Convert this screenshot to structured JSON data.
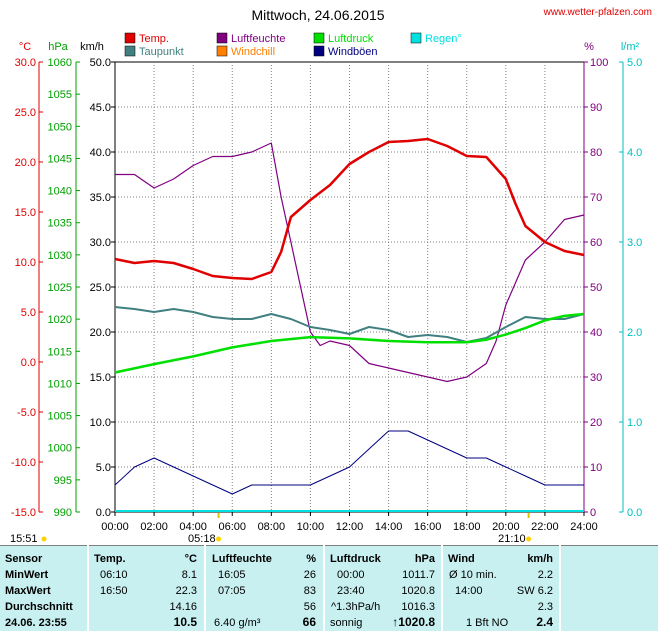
{
  "header": {
    "title": "Mittwoch, 24.06.2015",
    "site": "www.wetter-pfalzen.com"
  },
  "colors": {
    "temp": "#e00000",
    "taupunkt": "#408080",
    "luftfeuchte": "#800080",
    "windchill": "#ff8000",
    "luftdruck": "#00e000",
    "windboen": "#000080",
    "regen": "#00e0e0",
    "table_bg": "#c8f0f0"
  },
  "chart_data": {
    "type": "line",
    "x_label_ticks": [
      "00:00",
      "02:00",
      "04:00",
      "06:00",
      "08:00",
      "10:00",
      "12:00",
      "14:00",
      "16:00",
      "18:00",
      "20:00",
      "22:00",
      "24:00"
    ],
    "axes": {
      "temp_c": {
        "unit": "°C",
        "ticks": [
          "30.0",
          "25.0",
          "20.0",
          "15.0",
          "10.0",
          "5.0",
          "0.0",
          "-5.0",
          "-10.0",
          "-15.0"
        ],
        "ylim": [
          -15,
          30
        ]
      },
      "pressure": {
        "unit": "hPa",
        "ticks": [
          "1060",
          "1055",
          "1050",
          "1045",
          "1040",
          "1035",
          "1030",
          "1025",
          "1020",
          "1015",
          "1010",
          "1005",
          "1000",
          "995",
          "990"
        ],
        "ylim": [
          990,
          1060
        ]
      },
      "wind": {
        "unit": "km/h",
        "ticks": [
          "50.0",
          "45.0",
          "40.0",
          "35.0",
          "30.0",
          "25.0",
          "20.0",
          "15.0",
          "10.0",
          "5.0",
          "0.0"
        ],
        "ylim": [
          0,
          50
        ]
      },
      "humidity": {
        "unit": "%",
        "ticks": [
          "100",
          "90",
          "80",
          "70",
          "60",
          "50",
          "40",
          "30",
          "20",
          "10",
          "0"
        ],
        "ylim": [
          0,
          100
        ]
      },
      "rain": {
        "unit": "l/m²",
        "ticks": [
          "5.0",
          "4.0",
          "3.0",
          "2.0",
          "1.0",
          "0.0"
        ],
        "ylim": [
          0,
          5
        ]
      }
    },
    "legend": [
      "Temp.",
      "Luftfeuchte",
      "Luftdruck",
      "Regen°",
      "Taupunkt",
      "Windchill",
      "Windböen"
    ],
    "sun": {
      "sunrise_marker": "05:18",
      "sunset_marker": "21:10",
      "left_time": "15:51"
    },
    "series": [
      {
        "name": "Temp.",
        "axis": "temp_c",
        "x": [
          0,
          1,
          2,
          3,
          4,
          5,
          6,
          7,
          8,
          8.5,
          9,
          10,
          11,
          12,
          13,
          14,
          15,
          16,
          17,
          18,
          19,
          20,
          20.5,
          21,
          22,
          23,
          24
        ],
        "values": [
          10.3,
          9.9,
          10.1,
          9.9,
          9.3,
          8.6,
          8.4,
          8.3,
          9.0,
          11.0,
          14.5,
          16.2,
          17.7,
          19.8,
          21.0,
          22.0,
          22.1,
          22.3,
          21.6,
          20.6,
          20.5,
          18.3,
          15.8,
          13.6,
          12.0,
          11.1,
          10.7
        ]
      },
      {
        "name": "Taupunkt",
        "axis": "temp_c",
        "x": [
          0,
          1,
          2,
          3,
          4,
          5,
          6,
          7,
          8,
          9,
          10,
          11,
          12,
          13,
          14,
          15,
          16,
          17,
          18,
          19,
          20,
          21,
          22,
          23,
          24
        ],
        "values": [
          5.5,
          5.3,
          5.0,
          5.3,
          5.0,
          4.5,
          4.3,
          4.3,
          4.8,
          4.3,
          3.5,
          3.2,
          2.8,
          3.5,
          3.2,
          2.5,
          2.7,
          2.5,
          2.0,
          2.4,
          3.5,
          4.5,
          4.3,
          4.3,
          4.8
        ]
      },
      {
        "name": "Luftfeuchte",
        "axis": "humidity",
        "x": [
          0,
          1,
          2,
          3,
          4,
          5,
          6,
          7,
          8,
          8.5,
          9,
          9.5,
          10,
          10.5,
          11,
          12,
          13,
          14,
          15,
          16,
          17,
          18,
          19,
          19.5,
          20,
          21,
          22,
          23,
          24
        ],
        "values": [
          75,
          75,
          72,
          74,
          77,
          79,
          79,
          80,
          82,
          70,
          60,
          50,
          40,
          37,
          38,
          37,
          33,
          32,
          31,
          30,
          29,
          30,
          33,
          38,
          46,
          56,
          60,
          65,
          66
        ]
      },
      {
        "name": "Luftdruck",
        "axis": "pressure",
        "x": [
          0,
          2,
          4,
          6,
          8,
          10,
          12,
          14,
          16,
          18,
          19,
          20,
          21,
          22,
          23,
          24
        ],
        "values": [
          1011.7,
          1013.0,
          1014.2,
          1015.6,
          1016.6,
          1017.2,
          1017.0,
          1016.6,
          1016.4,
          1016.4,
          1016.8,
          1017.6,
          1018.6,
          1019.8,
          1020.5,
          1020.8
        ]
      },
      {
        "name": "Windböen",
        "axis": "wind",
        "x": [
          0,
          1,
          2,
          3,
          4,
          5,
          6,
          7,
          8,
          9,
          10,
          11,
          12,
          13,
          14,
          15,
          16,
          17,
          18,
          19,
          20,
          21,
          22,
          23,
          24
        ],
        "values": [
          3,
          5,
          6,
          5,
          4,
          3,
          2,
          3,
          3,
          3,
          3,
          4,
          5,
          7,
          9,
          9,
          8,
          7,
          6,
          6,
          5,
          4,
          3,
          3,
          3
        ]
      }
    ]
  },
  "table": {
    "headers": {
      "sensor": "Sensor",
      "temp": "Temp.",
      "temp_unit": "°C",
      "hum": "Luftfeuchte",
      "hum_unit": "%",
      "press": "Luftdruck",
      "press_unit": "hPa",
      "wind": "Wind",
      "wind_unit": "km/h"
    },
    "rows": [
      {
        "label": "MinWert",
        "t_time": "06:10",
        "t_val": "8.1",
        "h_time": "16:05",
        "h_val": "26",
        "p_time": "00:00",
        "p_val": "1011.7",
        "w_time": "Ø 10 min.",
        "w_val": "2.2"
      },
      {
        "label": "MaxWert",
        "t_time": "16:50",
        "t_val": "22.3",
        "h_time": "07:05",
        "h_val": "83",
        "p_time": "23:40",
        "p_val": "1020.8",
        "w_time": "14:00",
        "w_val": "SW 6.2"
      },
      {
        "label": "Durchschnitt",
        "t_time": "",
        "t_val": "14.16",
        "h_time": "",
        "h_val": "56",
        "p_time": "^1.3hPa/h",
        "p_val": "1016.3",
        "w_time": "",
        "w_val": "2.3"
      },
      {
        "label": "24.06. 23:55",
        "t_time": "",
        "t_val": "10.5",
        "h_time": "6.40 g/m³",
        "h_val": "66",
        "p_time": "sonnig",
        "p_val": "↑1020.8",
        "w_time": "1 Bft NO",
        "w_val": "2.4"
      }
    ]
  }
}
